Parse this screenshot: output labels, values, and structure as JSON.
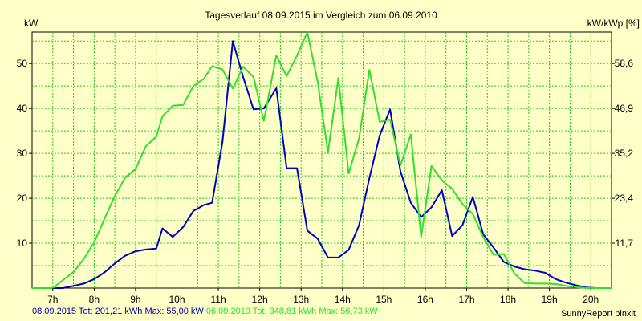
{
  "chart_data": {
    "type": "line",
    "title": "Tagesverlauf 08.09.2015 im Vergleich zum 06.09.2010",
    "ylabel_left": "kW",
    "ylabel_right": "kW/kWp [%]",
    "xlim": [
      6.5,
      20.5
    ],
    "ylim": [
      0,
      57
    ],
    "y_ticks_left": [
      10,
      20,
      30,
      40,
      50
    ],
    "y_ticks_right": [
      {
        "y": 10,
        "label": "11,7"
      },
      {
        "y": 20,
        "label": "23,4"
      },
      {
        "y": 30,
        "label": "35,2"
      },
      {
        "y": 40,
        "label": "46,9"
      },
      {
        "y": 50,
        "label": "58,6"
      }
    ],
    "x_ticks": [
      {
        "x": 7,
        "label": "7h"
      },
      {
        "x": 8,
        "label": "8h"
      },
      {
        "x": 9,
        "label": "9h"
      },
      {
        "x": 10,
        "label": "10h"
      },
      {
        "x": 11,
        "label": "11h"
      },
      {
        "x": 12,
        "label": "12h"
      },
      {
        "x": 13,
        "label": "13h"
      },
      {
        "x": 14,
        "label": "14h"
      },
      {
        "x": 15,
        "label": "15h"
      },
      {
        "x": 16,
        "label": "16h"
      },
      {
        "x": 17,
        "label": "17h"
      },
      {
        "x": 18,
        "label": "18h"
      },
      {
        "x": 19,
        "label": "19h"
      },
      {
        "x": 20,
        "label": "20h"
      }
    ],
    "grid": true,
    "series": [
      {
        "name": "08.09.2015",
        "color": "#0000c0",
        "points": [
          [
            6.5,
            0
          ],
          [
            7.0,
            0
          ],
          [
            7.25,
            0
          ],
          [
            7.5,
            0.5
          ],
          [
            7.75,
            1
          ],
          [
            8.0,
            2
          ],
          [
            8.25,
            3.5
          ],
          [
            8.5,
            5.5
          ],
          [
            8.75,
            7.2
          ],
          [
            9.0,
            8.2
          ],
          [
            9.25,
            8.6
          ],
          [
            9.5,
            8.8
          ],
          [
            9.65,
            13.3
          ],
          [
            9.9,
            11.4
          ],
          [
            10.15,
            13.6
          ],
          [
            10.4,
            17.2
          ],
          [
            10.65,
            18.5
          ],
          [
            10.85,
            19
          ],
          [
            11.1,
            32.5
          ],
          [
            11.35,
            55
          ],
          [
            11.6,
            47
          ],
          [
            11.85,
            39.8
          ],
          [
            12.1,
            40
          ],
          [
            12.4,
            44.5
          ],
          [
            12.65,
            26.7
          ],
          [
            12.9,
            26.7
          ],
          [
            13.15,
            12.8
          ],
          [
            13.4,
            11
          ],
          [
            13.65,
            6.8
          ],
          [
            13.9,
            6.8
          ],
          [
            14.15,
            8.5
          ],
          [
            14.4,
            14
          ],
          [
            14.65,
            24.5
          ],
          [
            14.9,
            34
          ],
          [
            15.15,
            39.8
          ],
          [
            15.4,
            26
          ],
          [
            15.65,
            19
          ],
          [
            15.9,
            15.8
          ],
          [
            16.15,
            18
          ],
          [
            16.4,
            21.8
          ],
          [
            16.65,
            11.6
          ],
          [
            16.9,
            14
          ],
          [
            17.15,
            20.3
          ],
          [
            17.4,
            12
          ],
          [
            17.65,
            9
          ],
          [
            17.9,
            5.8
          ],
          [
            18.15,
            4.8
          ],
          [
            18.4,
            4.2
          ],
          [
            18.65,
            3.9
          ],
          [
            18.9,
            3.4
          ],
          [
            19.15,
            2
          ],
          [
            19.4,
            1.2
          ],
          [
            19.65,
            0.6
          ],
          [
            19.9,
            0.1
          ],
          [
            20.15,
            0
          ],
          [
            20.5,
            0
          ]
        ]
      },
      {
        "name": "06.09.2010",
        "color": "#2fe02f",
        "points": [
          [
            6.5,
            0
          ],
          [
            7.0,
            0
          ],
          [
            7.25,
            1.8
          ],
          [
            7.5,
            3.6
          ],
          [
            7.75,
            6.5
          ],
          [
            8.0,
            10.2
          ],
          [
            8.25,
            15.5
          ],
          [
            8.5,
            20.5
          ],
          [
            8.75,
            24.6
          ],
          [
            9.0,
            26.5
          ],
          [
            9.25,
            31.6
          ],
          [
            9.5,
            33.7
          ],
          [
            9.65,
            38.3
          ],
          [
            9.9,
            40.6
          ],
          [
            10.15,
            40.8
          ],
          [
            10.4,
            45
          ],
          [
            10.65,
            46.6
          ],
          [
            10.85,
            49.4
          ],
          [
            11.1,
            48.7
          ],
          [
            11.35,
            44.4
          ],
          [
            11.6,
            49.3
          ],
          [
            11.85,
            47
          ],
          [
            12.1,
            37.2
          ],
          [
            12.4,
            51.8
          ],
          [
            12.65,
            47.2
          ],
          [
            12.9,
            51.8
          ],
          [
            13.15,
            57
          ],
          [
            13.4,
            46
          ],
          [
            13.65,
            30.2
          ],
          [
            13.9,
            46.8
          ],
          [
            14.15,
            25.5
          ],
          [
            14.4,
            33.3
          ],
          [
            14.65,
            48.6
          ],
          [
            14.9,
            37
          ],
          [
            15.15,
            37.5
          ],
          [
            15.4,
            27.3
          ],
          [
            15.65,
            34.2
          ],
          [
            15.9,
            11.4
          ],
          [
            16.15,
            27.2
          ],
          [
            16.4,
            24
          ],
          [
            16.65,
            22.1
          ],
          [
            16.9,
            18.7
          ],
          [
            17.15,
            16.5
          ],
          [
            17.4,
            11.4
          ],
          [
            17.65,
            7.4
          ],
          [
            17.9,
            7.6
          ],
          [
            18.15,
            3.3
          ],
          [
            18.4,
            1.1
          ],
          [
            18.65,
            1
          ],
          [
            18.9,
            1
          ],
          [
            19.15,
            0.9
          ],
          [
            19.4,
            0.5
          ],
          [
            19.65,
            0.2
          ],
          [
            19.9,
            0
          ],
          [
            20.5,
            0
          ]
        ]
      }
    ]
  },
  "footer": {
    "series1_summary": "08.09.2015 Tot: 201,21 kWh Max: 55,00 kW",
    "series2_summary": "06.09.2010 Tot: 348,81 kWh Max: 56,73 kW",
    "brand": "SunnyReport pinxit"
  }
}
